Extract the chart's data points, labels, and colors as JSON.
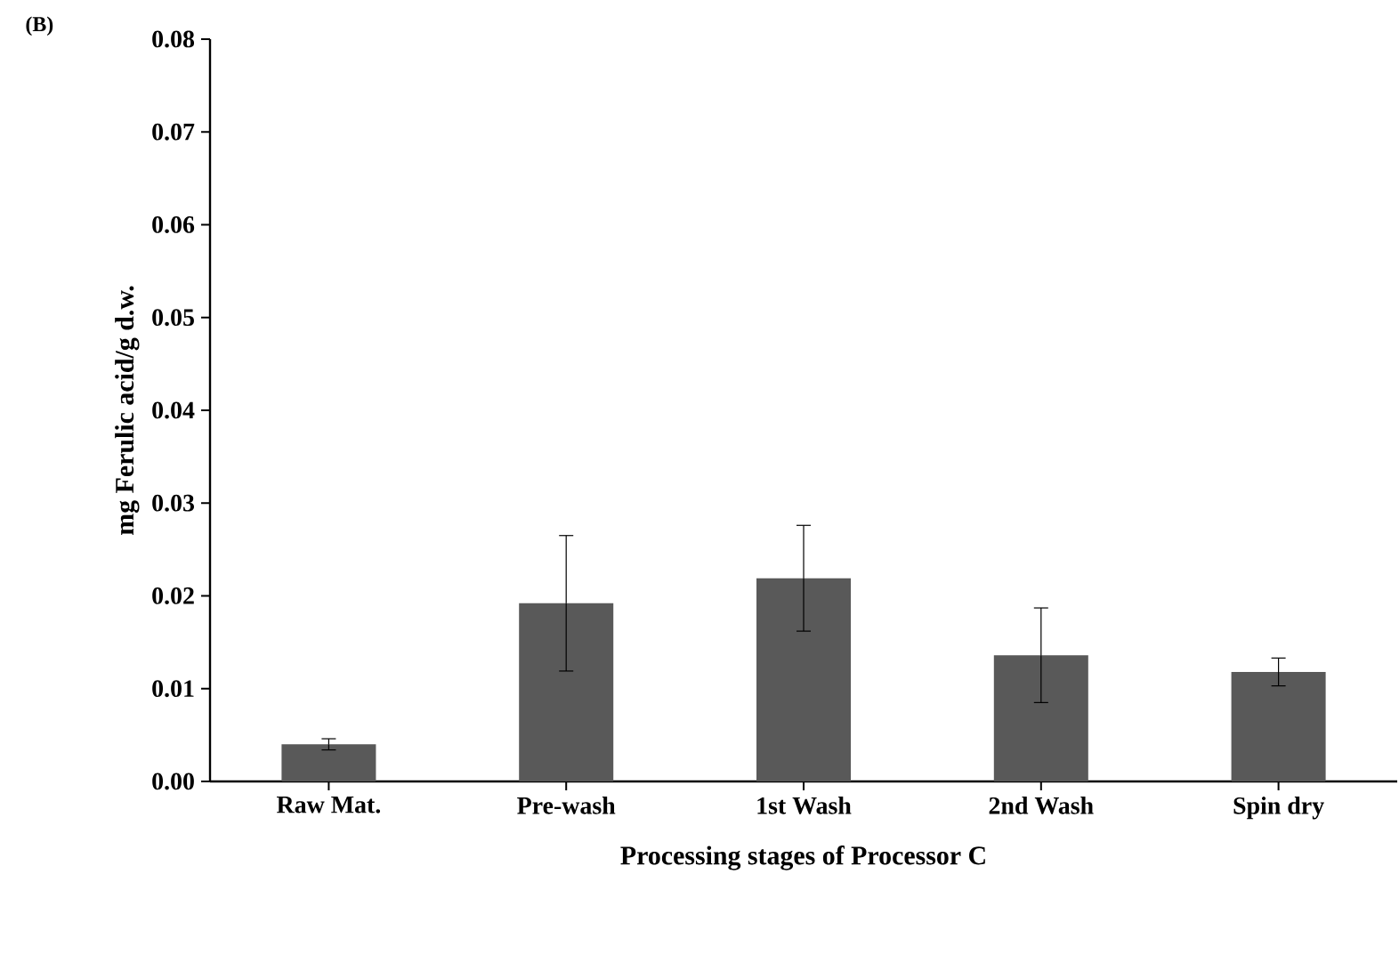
{
  "chart_data": {
    "type": "bar",
    "xlabel": "Processing stages of Processor C",
    "ylabel": "mg Ferulic acid/g d.w.",
    "annotations": [
      "(B)"
    ],
    "categories": [
      "Raw Mat.",
      "Pre-wash",
      "1st Wash",
      "2nd Wash",
      "Spin dry"
    ],
    "values": [
      0.004,
      0.0192,
      0.0219,
      0.0136,
      0.0118
    ],
    "errors": [
      0.0006,
      0.0073,
      0.0057,
      0.0051,
      0.0015
    ],
    "color": "#595959",
    "ylim": [
      0,
      0.08
    ],
    "yticks": [
      {
        "value": 0,
        "label": "0.00"
      },
      {
        "value": 0.01,
        "label": "0.01"
      },
      {
        "value": 0.02,
        "label": "0.02"
      },
      {
        "value": 0.03,
        "label": "0.03"
      },
      {
        "value": 0.04,
        "label": "0.04"
      },
      {
        "value": 0.05,
        "label": "0.05"
      },
      {
        "value": 0.06,
        "label": "0.06"
      },
      {
        "value": 0.07,
        "label": "0.07"
      },
      {
        "value": 0.08,
        "label": "0.08"
      }
    ],
    "grid": false
  }
}
